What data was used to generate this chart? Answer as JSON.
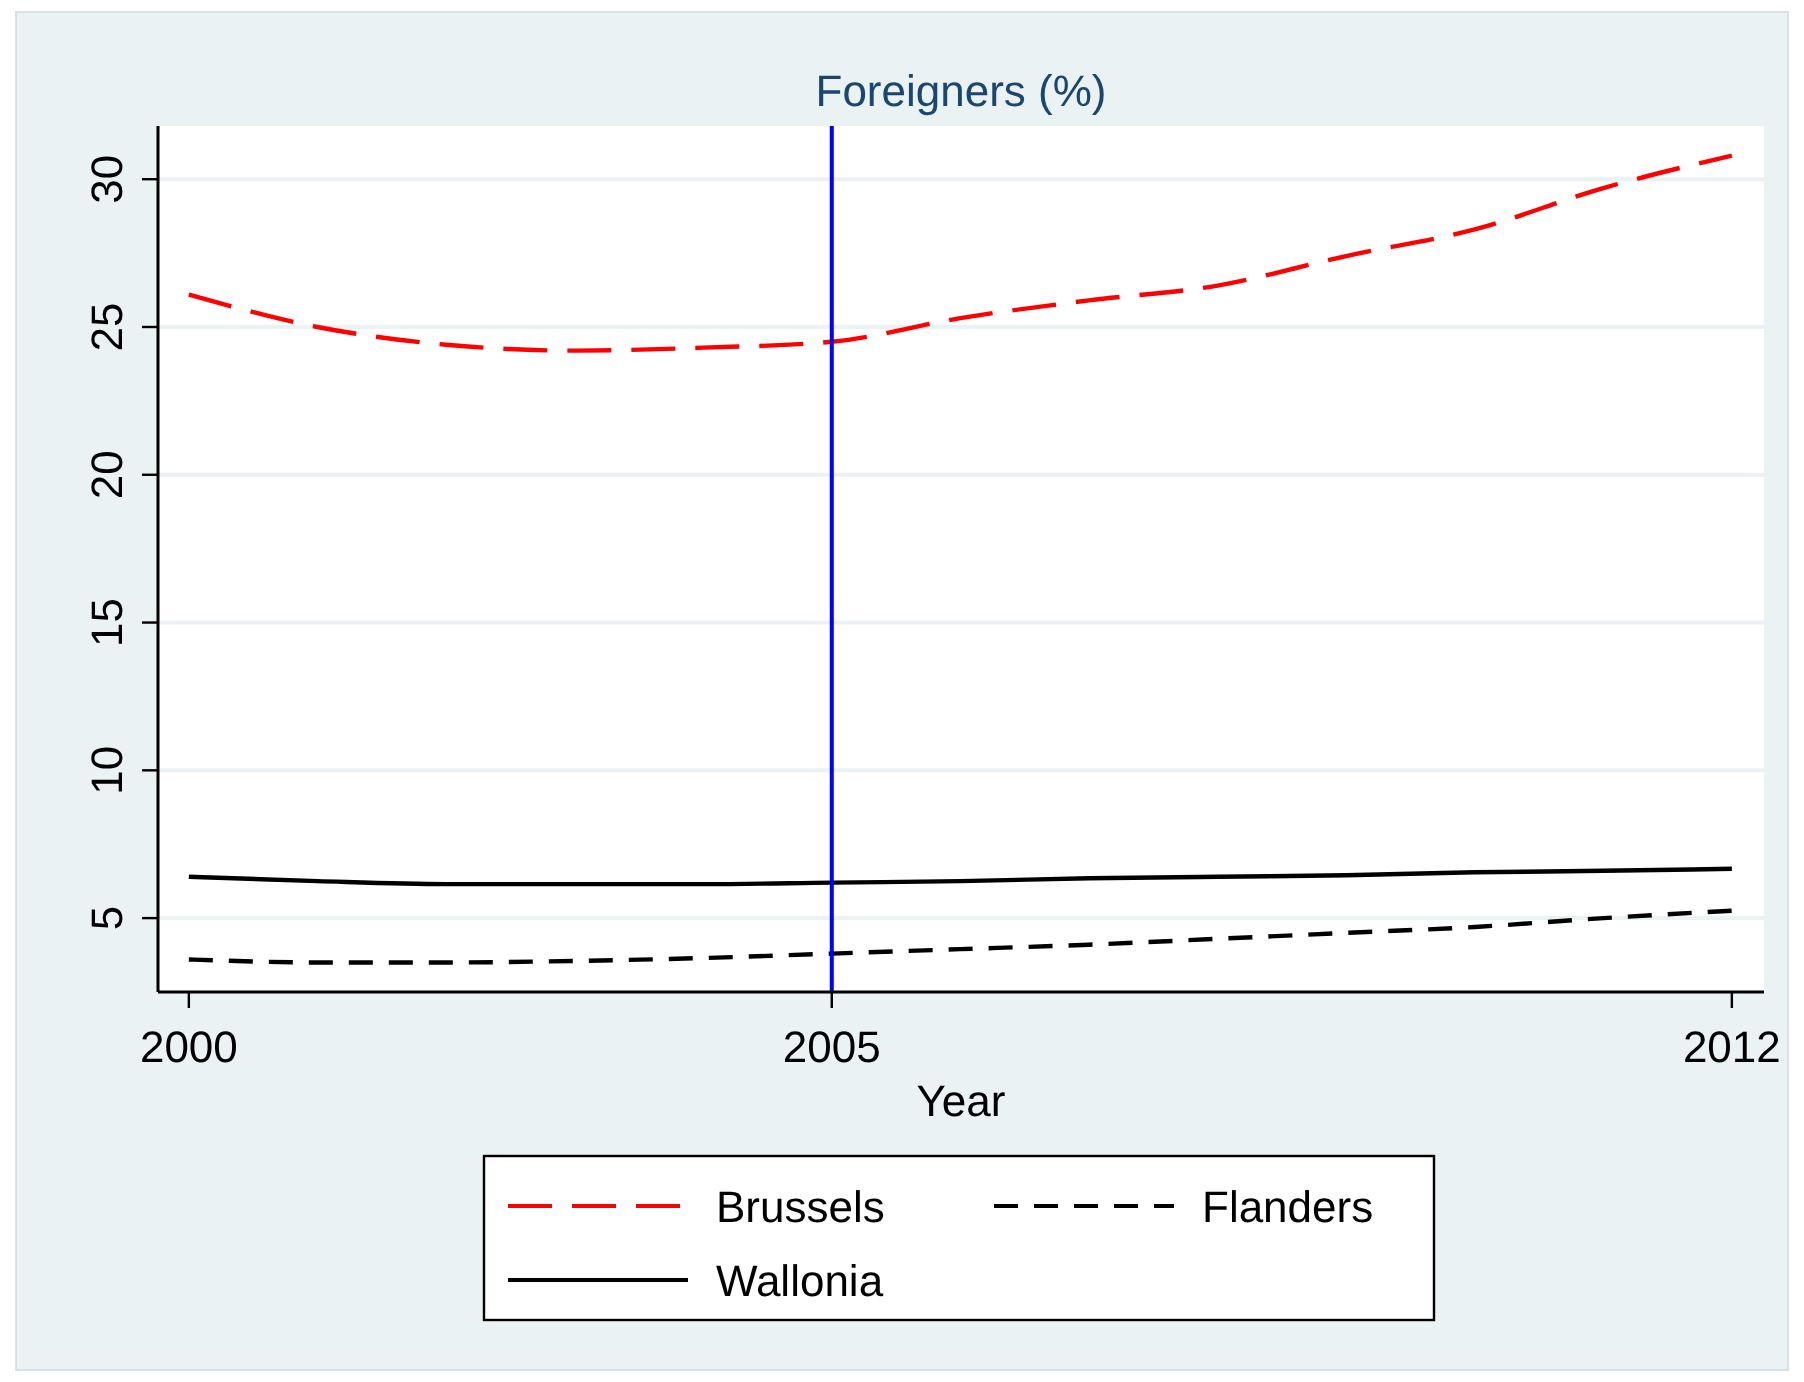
{
  "chart_data": {
    "type": "line",
    "title": "Foreigners (%)",
    "xlabel": "Year",
    "x": [
      2000,
      2001,
      2002,
      2003,
      2004,
      2005,
      2006,
      2007,
      2008,
      2009,
      2010,
      2011,
      2012
    ],
    "series": [
      {
        "name": "Brussels",
        "color": "#ff0000",
        "line_style": "dashed",
        "values": [
          26.1,
          25.0,
          24.4,
          24.2,
          24.3,
          24.5,
          25.3,
          25.9,
          26.4,
          27.4,
          28.3,
          29.7,
          30.8
        ]
      },
      {
        "name": "Flanders",
        "color": "#000000",
        "line_style": "dashed",
        "values": [
          3.6,
          3.5,
          3.5,
          3.55,
          3.65,
          3.8,
          3.95,
          4.1,
          4.3,
          4.5,
          4.7,
          5.0,
          5.25
        ]
      },
      {
        "name": "Wallonia",
        "color": "#000000",
        "line_style": "solid",
        "values": [
          6.4,
          6.25,
          6.15,
          6.15,
          6.15,
          6.2,
          6.25,
          6.35,
          6.4,
          6.45,
          6.55,
          6.6,
          6.67
        ]
      }
    ],
    "xlim": [
      1999.76,
      2012.25
    ],
    "xticks": [
      2000,
      2005,
      2012
    ],
    "ylim": [
      2.5,
      31.8
    ],
    "yticks": [
      5,
      10,
      15,
      20,
      25,
      30
    ],
    "grid": "y",
    "legend": "bottom",
    "marker": "none",
    "ref_lines": [
      {
        "axis": "x",
        "value": 2005,
        "color": "#0000ff"
      }
    ]
  }
}
